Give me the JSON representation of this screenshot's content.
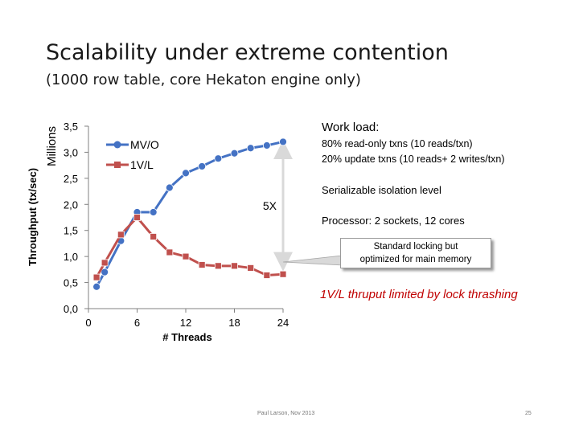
{
  "slide": {
    "title": "Scalability under extreme contention",
    "subtitle": "(1000 row table, core Hekaton engine only)",
    "workload_title": "Work load:",
    "workload_lines": [
      "80% read-only txns (10 reads/txn)",
      "20% update txns (10 reads+ 2 writes/txn)"
    ],
    "isolation": "Serializable isolation level",
    "processor": "Processor: 2 sockets, 12 cores",
    "callout_lines": [
      "Standard locking but",
      "optimized for main memory"
    ],
    "thrashing_note": "1V/L thruput limited by lock thrashing",
    "footer_author": "Paul Larson, Nov 2013",
    "page_number": "25"
  },
  "chart_data": {
    "type": "line",
    "ylabel": "Throughput (tx/sec)",
    "yunit": "Millions",
    "xlabel": "# Threads",
    "xlim": [
      0,
      24
    ],
    "ylim": [
      0,
      3.5
    ],
    "xticks": [
      0,
      6,
      12,
      18,
      24
    ],
    "yticks": [
      0,
      0.5,
      1.0,
      1.5,
      2.0,
      2.5,
      3.0,
      3.5
    ],
    "ytick_labels": [
      "0,0",
      "0,5",
      "1,0",
      "1,5",
      "2,0",
      "2,5",
      "3,0",
      "3,5"
    ],
    "grid": false,
    "legend_position": "top-left",
    "series": [
      {
        "name": "MV/O",
        "color": "#4472c4",
        "marker": "circle",
        "x": [
          1,
          2,
          4,
          6,
          8,
          10,
          12,
          14,
          16,
          18,
          20,
          22,
          24
        ],
        "y": [
          0.42,
          0.7,
          1.3,
          1.85,
          1.85,
          2.32,
          2.6,
          2.73,
          2.88,
          2.98,
          3.08,
          3.13,
          3.2
        ]
      },
      {
        "name": "1V/L",
        "color": "#c0504d",
        "marker": "square",
        "x": [
          1,
          2,
          4,
          6,
          8,
          10,
          12,
          14,
          16,
          18,
          20,
          22,
          24
        ],
        "y": [
          0.6,
          0.88,
          1.42,
          1.75,
          1.38,
          1.08,
          1.0,
          0.84,
          0.82,
          0.82,
          0.78,
          0.64,
          0.66
        ]
      }
    ],
    "annotations": [
      {
        "text": "5X",
        "x": 24,
        "y_from": 0.9,
        "y_to": 3.05
      }
    ]
  }
}
